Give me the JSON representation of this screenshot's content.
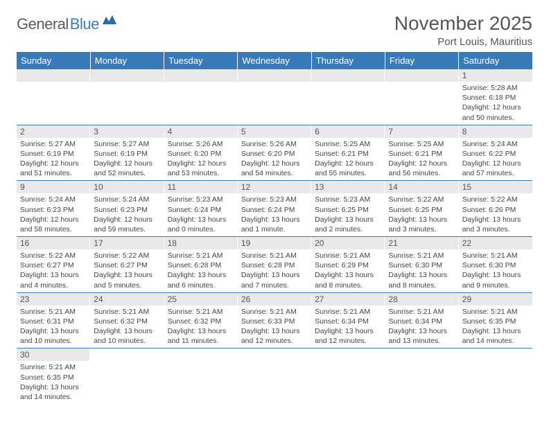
{
  "logo": {
    "part1": "General",
    "part2": "Blue"
  },
  "title": "November 2025",
  "subtitle": "Port Louis, Mauritius",
  "colors": {
    "header_bg": "#3a7ab8",
    "header_text": "#ffffff",
    "daynum_bg": "#e9e9e9",
    "border": "#3a7ab8",
    "text": "#444444",
    "logo_gray": "#5a5a5a",
    "logo_blue": "#3a7ab8"
  },
  "weekdays": [
    "Sunday",
    "Monday",
    "Tuesday",
    "Wednesday",
    "Thursday",
    "Friday",
    "Saturday"
  ],
  "weeks": [
    [
      {
        "empty": true
      },
      {
        "empty": true
      },
      {
        "empty": true
      },
      {
        "empty": true
      },
      {
        "empty": true
      },
      {
        "empty": true
      },
      {
        "day": "1",
        "sunrise": "Sunrise: 5:28 AM",
        "sunset": "Sunset: 6:18 PM",
        "daylight": "Daylight: 12 hours and 50 minutes."
      }
    ],
    [
      {
        "day": "2",
        "sunrise": "Sunrise: 5:27 AM",
        "sunset": "Sunset: 6:19 PM",
        "daylight": "Daylight: 12 hours and 51 minutes."
      },
      {
        "day": "3",
        "sunrise": "Sunrise: 5:27 AM",
        "sunset": "Sunset: 6:19 PM",
        "daylight": "Daylight: 12 hours and 52 minutes."
      },
      {
        "day": "4",
        "sunrise": "Sunrise: 5:26 AM",
        "sunset": "Sunset: 6:20 PM",
        "daylight": "Daylight: 12 hours and 53 minutes."
      },
      {
        "day": "5",
        "sunrise": "Sunrise: 5:26 AM",
        "sunset": "Sunset: 6:20 PM",
        "daylight": "Daylight: 12 hours and 54 minutes."
      },
      {
        "day": "6",
        "sunrise": "Sunrise: 5:25 AM",
        "sunset": "Sunset: 6:21 PM",
        "daylight": "Daylight: 12 hours and 55 minutes."
      },
      {
        "day": "7",
        "sunrise": "Sunrise: 5:25 AM",
        "sunset": "Sunset: 6:21 PM",
        "daylight": "Daylight: 12 hours and 56 minutes."
      },
      {
        "day": "8",
        "sunrise": "Sunrise: 5:24 AM",
        "sunset": "Sunset: 6:22 PM",
        "daylight": "Daylight: 12 hours and 57 minutes."
      }
    ],
    [
      {
        "day": "9",
        "sunrise": "Sunrise: 5:24 AM",
        "sunset": "Sunset: 6:23 PM",
        "daylight": "Daylight: 12 hours and 58 minutes."
      },
      {
        "day": "10",
        "sunrise": "Sunrise: 5:24 AM",
        "sunset": "Sunset: 6:23 PM",
        "daylight": "Daylight: 12 hours and 59 minutes."
      },
      {
        "day": "11",
        "sunrise": "Sunrise: 5:23 AM",
        "sunset": "Sunset: 6:24 PM",
        "daylight": "Daylight: 13 hours and 0 minutes."
      },
      {
        "day": "12",
        "sunrise": "Sunrise: 5:23 AM",
        "sunset": "Sunset: 6:24 PM",
        "daylight": "Daylight: 13 hours and 1 minute."
      },
      {
        "day": "13",
        "sunrise": "Sunrise: 5:23 AM",
        "sunset": "Sunset: 6:25 PM",
        "daylight": "Daylight: 13 hours and 2 minutes."
      },
      {
        "day": "14",
        "sunrise": "Sunrise: 5:22 AM",
        "sunset": "Sunset: 6:25 PM",
        "daylight": "Daylight: 13 hours and 3 minutes."
      },
      {
        "day": "15",
        "sunrise": "Sunrise: 5:22 AM",
        "sunset": "Sunset: 6:26 PM",
        "daylight": "Daylight: 13 hours and 3 minutes."
      }
    ],
    [
      {
        "day": "16",
        "sunrise": "Sunrise: 5:22 AM",
        "sunset": "Sunset: 6:27 PM",
        "daylight": "Daylight: 13 hours and 4 minutes."
      },
      {
        "day": "17",
        "sunrise": "Sunrise: 5:22 AM",
        "sunset": "Sunset: 6:27 PM",
        "daylight": "Daylight: 13 hours and 5 minutes."
      },
      {
        "day": "18",
        "sunrise": "Sunrise: 5:21 AM",
        "sunset": "Sunset: 6:28 PM",
        "daylight": "Daylight: 13 hours and 6 minutes."
      },
      {
        "day": "19",
        "sunrise": "Sunrise: 5:21 AM",
        "sunset": "Sunset: 6:28 PM",
        "daylight": "Daylight: 13 hours and 7 minutes."
      },
      {
        "day": "20",
        "sunrise": "Sunrise: 5:21 AM",
        "sunset": "Sunset: 6:29 PM",
        "daylight": "Daylight: 13 hours and 8 minutes."
      },
      {
        "day": "21",
        "sunrise": "Sunrise: 5:21 AM",
        "sunset": "Sunset: 6:30 PM",
        "daylight": "Daylight: 13 hours and 8 minutes."
      },
      {
        "day": "22",
        "sunrise": "Sunrise: 5:21 AM",
        "sunset": "Sunset: 6:30 PM",
        "daylight": "Daylight: 13 hours and 9 minutes."
      }
    ],
    [
      {
        "day": "23",
        "sunrise": "Sunrise: 5:21 AM",
        "sunset": "Sunset: 6:31 PM",
        "daylight": "Daylight: 13 hours and 10 minutes."
      },
      {
        "day": "24",
        "sunrise": "Sunrise: 5:21 AM",
        "sunset": "Sunset: 6:32 PM",
        "daylight": "Daylight: 13 hours and 10 minutes."
      },
      {
        "day": "25",
        "sunrise": "Sunrise: 5:21 AM",
        "sunset": "Sunset: 6:32 PM",
        "daylight": "Daylight: 13 hours and 11 minutes."
      },
      {
        "day": "26",
        "sunrise": "Sunrise: 5:21 AM",
        "sunset": "Sunset: 6:33 PM",
        "daylight": "Daylight: 13 hours and 12 minutes."
      },
      {
        "day": "27",
        "sunrise": "Sunrise: 5:21 AM",
        "sunset": "Sunset: 6:34 PM",
        "daylight": "Daylight: 13 hours and 12 minutes."
      },
      {
        "day": "28",
        "sunrise": "Sunrise: 5:21 AM",
        "sunset": "Sunset: 6:34 PM",
        "daylight": "Daylight: 13 hours and 13 minutes."
      },
      {
        "day": "29",
        "sunrise": "Sunrise: 5:21 AM",
        "sunset": "Sunset: 6:35 PM",
        "daylight": "Daylight: 13 hours and 14 minutes."
      }
    ],
    [
      {
        "day": "30",
        "sunrise": "Sunrise: 5:21 AM",
        "sunset": "Sunset: 6:35 PM",
        "daylight": "Daylight: 13 hours and 14 minutes."
      },
      {
        "empty": true
      },
      {
        "empty": true
      },
      {
        "empty": true
      },
      {
        "empty": true
      },
      {
        "empty": true
      },
      {
        "empty": true
      }
    ]
  ]
}
